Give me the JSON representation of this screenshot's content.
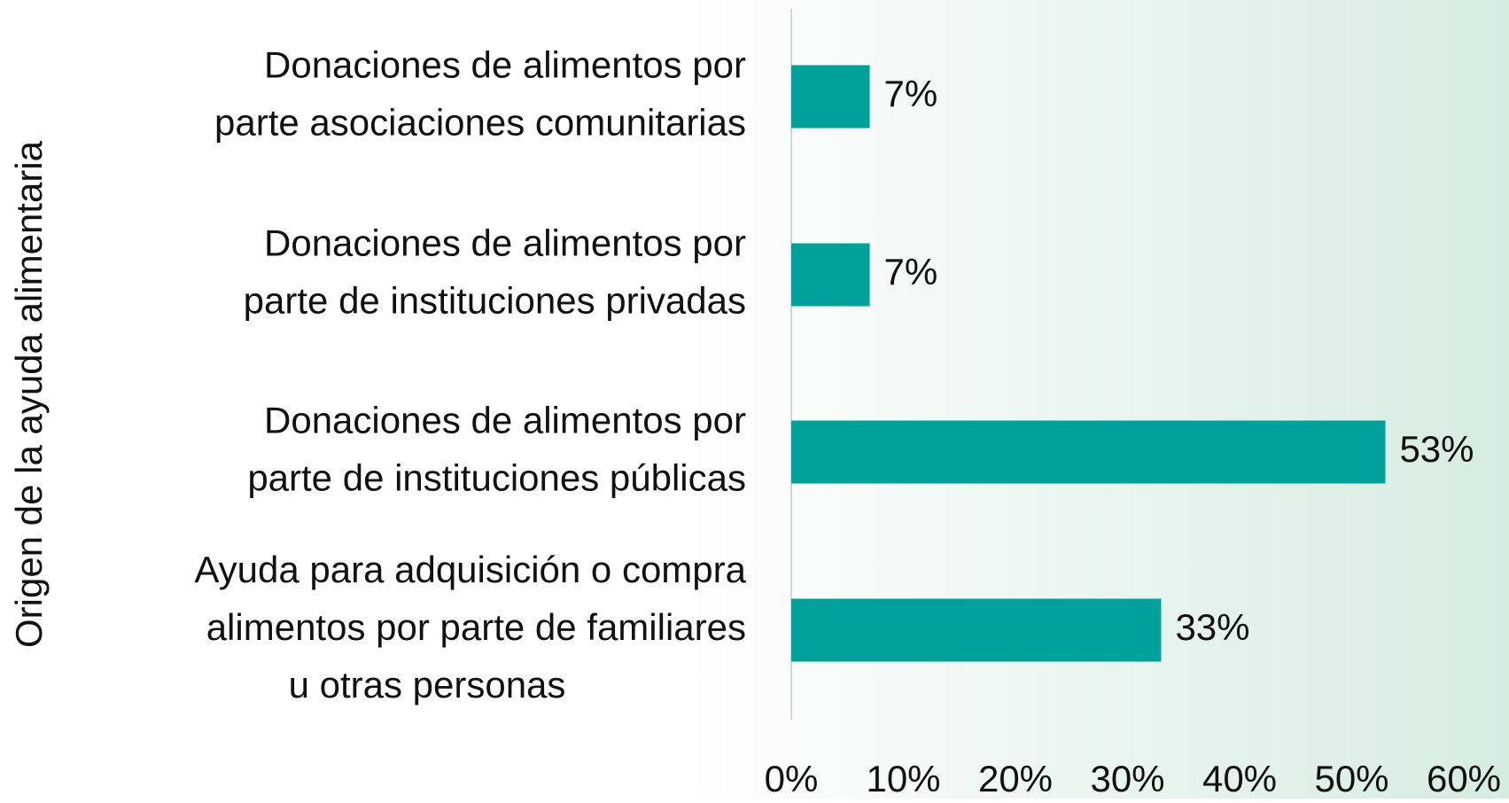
{
  "chart_data": {
    "type": "barh",
    "y_label": "Origen de la ayuda alimentaria",
    "categories": [
      [
        "Donaciones de alimentos por",
        "parte asociaciones comunitarias"
      ],
      [
        "Donaciones de alimentos por",
        "parte de instituciones privadas"
      ],
      [
        "Donaciones de alimentos por",
        "parte de instituciones públicas"
      ],
      [
        "Ayuda para adquisición o compra",
        "alimentos por parte de familiares",
        "u otras personas"
      ]
    ],
    "values": [
      7,
      7,
      53,
      33
    ],
    "value_labels": [
      "7%",
      "7%",
      "53%",
      "33%"
    ],
    "color": "#00a19a",
    "xlim": [
      0,
      60
    ],
    "xticks": [
      {
        "value": 0,
        "label": "0%"
      },
      {
        "value": 10,
        "label": "10%"
      },
      {
        "value": 20,
        "label": "20%"
      },
      {
        "value": 30,
        "label": "30%"
      },
      {
        "value": 40,
        "label": "40%"
      },
      {
        "value": 50,
        "label": "50%"
      },
      {
        "value": 60,
        "label": "60%"
      }
    ]
  }
}
